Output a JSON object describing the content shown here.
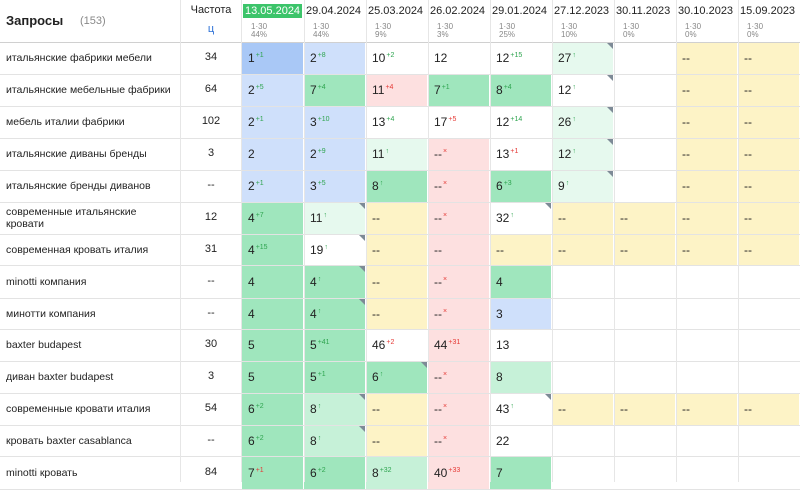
{
  "header": {
    "title": "Запросы",
    "count": "(153)",
    "freq_label": "Частота",
    "freq_sort": "ц"
  },
  "dates": [
    {
      "date": "13.05.2024",
      "s1": "1·30",
      "s2": "44%",
      "active": true
    },
    {
      "date": "29.04.2024",
      "s1": "1·30",
      "s2": "44%"
    },
    {
      "date": "25.03.2024",
      "s1": "1·30",
      "s2": "9%"
    },
    {
      "date": "26.02.2024",
      "s1": "1·30",
      "s2": "3%"
    },
    {
      "date": "29.01.2024",
      "s1": "1·30",
      "s2": "25%"
    },
    {
      "date": "27.12.2023",
      "s1": "1·30",
      "s2": "10%"
    },
    {
      "date": "30.11.2023",
      "s1": "1·30",
      "s2": "0%"
    },
    {
      "date": "30.10.2023",
      "s1": "1·30",
      "s2": "0%"
    },
    {
      "date": "15.09.2023",
      "s1": "1·30",
      "s2": "0%"
    }
  ],
  "colors": {
    "blue": "#cfe0fb",
    "blue_dark": "#a9c8f6",
    "green": "#9fe6bd",
    "green_light": "#c6f1d8",
    "green_pale": "#e6f9ee",
    "yellow": "#fdf3c6",
    "red": "#fde0e0",
    "white": "#ffffff"
  },
  "rows": [
    {
      "query": "итальянские фабрики мебели",
      "freq": "34",
      "cells": [
        {
          "v": "1",
          "ch": "+1",
          "d": "up",
          "bg": "blue_dark"
        },
        {
          "v": "2",
          "ch": "+8",
          "d": "up",
          "bg": "blue"
        },
        {
          "v": "10",
          "ch": "+2",
          "d": "up",
          "bg": "white"
        },
        {
          "v": "12",
          "bg": "white"
        },
        {
          "v": "12",
          "ch": "+15",
          "d": "up",
          "bg": "white"
        },
        {
          "v": "27",
          "ch": "↑",
          "d": "up",
          "bg": "green_pale",
          "corner": true
        },
        {
          "v": "",
          "bg": "white"
        },
        {
          "v": "--",
          "bg": "yellow"
        },
        {
          "v": "--",
          "bg": "yellow"
        }
      ]
    },
    {
      "query": "итальянские мебельные фабрики",
      "freq": "64",
      "cells": [
        {
          "v": "2",
          "ch": "+5",
          "d": "up",
          "bg": "blue"
        },
        {
          "v": "7",
          "ch": "+4",
          "d": "up",
          "bg": "green"
        },
        {
          "v": "11",
          "ch": "+4",
          "d": "dn",
          "bg": "red"
        },
        {
          "v": "7",
          "ch": "+1",
          "d": "up",
          "bg": "green"
        },
        {
          "v": "8",
          "ch": "+4",
          "d": "up",
          "bg": "green"
        },
        {
          "v": "12",
          "ch": "↑",
          "d": "up",
          "bg": "white",
          "corner": true
        },
        {
          "v": "",
          "bg": "white"
        },
        {
          "v": "--",
          "bg": "yellow"
        },
        {
          "v": "--",
          "bg": "yellow"
        }
      ]
    },
    {
      "query": "мебель италии фабрики",
      "freq": "102",
      "cells": [
        {
          "v": "2",
          "ch": "+1",
          "d": "up",
          "bg": "blue"
        },
        {
          "v": "3",
          "ch": "+10",
          "d": "up",
          "bg": "blue"
        },
        {
          "v": "13",
          "ch": "+4",
          "d": "up",
          "bg": "white"
        },
        {
          "v": "17",
          "ch": "+5",
          "d": "dn",
          "bg": "white"
        },
        {
          "v": "12",
          "ch": "+14",
          "d": "up",
          "bg": "white"
        },
        {
          "v": "26",
          "ch": "↑",
          "d": "up",
          "bg": "green_pale",
          "corner": true
        },
        {
          "v": "",
          "bg": "white"
        },
        {
          "v": "--",
          "bg": "yellow"
        },
        {
          "v": "--",
          "bg": "yellow"
        }
      ]
    },
    {
      "query": "итальянские диваны бренды",
      "freq": "3",
      "cells": [
        {
          "v": "2",
          "bg": "blue"
        },
        {
          "v": "2",
          "ch": "+9",
          "d": "up",
          "bg": "blue"
        },
        {
          "v": "11",
          "ch": "↑",
          "d": "up",
          "bg": "green_pale"
        },
        {
          "v": "--",
          "ch": "×",
          "d": "dn",
          "bg": "red"
        },
        {
          "v": "13",
          "ch": "+1",
          "d": "dn",
          "bg": "white"
        },
        {
          "v": "12",
          "ch": "↑",
          "d": "up",
          "bg": "green_pale",
          "corner": true
        },
        {
          "v": "",
          "bg": "white"
        },
        {
          "v": "--",
          "bg": "yellow"
        },
        {
          "v": "--",
          "bg": "yellow"
        }
      ]
    },
    {
      "query": "итальянские бренды диванов",
      "freq": "--",
      "cells": [
        {
          "v": "2",
          "ch": "+1",
          "d": "up",
          "bg": "blue"
        },
        {
          "v": "3",
          "ch": "+5",
          "d": "up",
          "bg": "blue"
        },
        {
          "v": "8",
          "ch": "↑",
          "d": "up",
          "bg": "green"
        },
        {
          "v": "--",
          "ch": "×",
          "d": "dn",
          "bg": "red"
        },
        {
          "v": "6",
          "ch": "+3",
          "d": "up",
          "bg": "green"
        },
        {
          "v": "9",
          "ch": "↑",
          "d": "up",
          "bg": "green_pale",
          "corner": true
        },
        {
          "v": "",
          "bg": "white"
        },
        {
          "v": "--",
          "bg": "yellow"
        },
        {
          "v": "--",
          "bg": "yellow"
        }
      ]
    },
    {
      "query": "современные итальянские кровати",
      "freq": "12",
      "cells": [
        {
          "v": "4",
          "ch": "+7",
          "d": "up",
          "bg": "green"
        },
        {
          "v": "11",
          "ch": "↑",
          "d": "up",
          "bg": "green_pale",
          "corner": true
        },
        {
          "v": "--",
          "bg": "yellow"
        },
        {
          "v": "--",
          "ch": "×",
          "d": "dn",
          "bg": "red"
        },
        {
          "v": "32",
          "ch": "↑",
          "d": "up",
          "bg": "white",
          "corner": true
        },
        {
          "v": "--",
          "bg": "yellow"
        },
        {
          "v": "--",
          "bg": "yellow"
        },
        {
          "v": "--",
          "bg": "yellow"
        },
        {
          "v": "--",
          "bg": "yellow"
        }
      ]
    },
    {
      "query": "современная кровать италия",
      "freq": "31",
      "cells": [
        {
          "v": "4",
          "ch": "+15",
          "d": "up",
          "bg": "green"
        },
        {
          "v": "19",
          "ch": "↑",
          "d": "up",
          "bg": "white",
          "corner": true
        },
        {
          "v": "--",
          "bg": "yellow"
        },
        {
          "v": "--",
          "bg": "red"
        },
        {
          "v": "--",
          "bg": "yellow"
        },
        {
          "v": "--",
          "bg": "yellow"
        },
        {
          "v": "--",
          "bg": "yellow"
        },
        {
          "v": "--",
          "bg": "yellow"
        },
        {
          "v": "--",
          "bg": "yellow"
        }
      ]
    },
    {
      "query": "minotti компания",
      "freq": "--",
      "cells": [
        {
          "v": "4",
          "bg": "green"
        },
        {
          "v": "4",
          "ch": "↑",
          "d": "up",
          "bg": "green",
          "corner": true
        },
        {
          "v": "--",
          "bg": "yellow"
        },
        {
          "v": "--",
          "ch": "×",
          "d": "dn",
          "bg": "red"
        },
        {
          "v": "4",
          "bg": "green"
        },
        {
          "v": "",
          "bg": "white"
        },
        {
          "v": "",
          "bg": "white"
        },
        {
          "v": "",
          "bg": "white"
        },
        {
          "v": "",
          "bg": "white"
        }
      ]
    },
    {
      "query": "минотти компания",
      "freq": "--",
      "cells": [
        {
          "v": "4",
          "bg": "green"
        },
        {
          "v": "4",
          "ch": "↑",
          "d": "up",
          "bg": "green",
          "corner": true
        },
        {
          "v": "--",
          "bg": "yellow"
        },
        {
          "v": "--",
          "ch": "×",
          "d": "dn",
          "bg": "red"
        },
        {
          "v": "3",
          "bg": "blue"
        },
        {
          "v": "",
          "bg": "white"
        },
        {
          "v": "",
          "bg": "white"
        },
        {
          "v": "",
          "bg": "white"
        },
        {
          "v": "",
          "bg": "white"
        }
      ]
    },
    {
      "query": "baxter budapest",
      "freq": "30",
      "cells": [
        {
          "v": "5",
          "bg": "green"
        },
        {
          "v": "5",
          "ch": "+41",
          "d": "up",
          "bg": "green"
        },
        {
          "v": "46",
          "ch": "+2",
          "d": "dn",
          "bg": "white"
        },
        {
          "v": "44",
          "ch": "+31",
          "d": "dn",
          "bg": "red"
        },
        {
          "v": "13",
          "bg": "white"
        },
        {
          "v": "",
          "bg": "white"
        },
        {
          "v": "",
          "bg": "white"
        },
        {
          "v": "",
          "bg": "white"
        },
        {
          "v": "",
          "bg": "white"
        }
      ]
    },
    {
      "query": "диван baxter budapest",
      "freq": "3",
      "cells": [
        {
          "v": "5",
          "bg": "green"
        },
        {
          "v": "5",
          "ch": "+1",
          "d": "up",
          "bg": "green"
        },
        {
          "v": "6",
          "ch": "↑",
          "d": "up",
          "bg": "green",
          "corner": true
        },
        {
          "v": "--",
          "ch": "×",
          "d": "dn",
          "bg": "red"
        },
        {
          "v": "8",
          "bg": "green_light"
        },
        {
          "v": "",
          "bg": "white"
        },
        {
          "v": "",
          "bg": "white"
        },
        {
          "v": "",
          "bg": "white"
        },
        {
          "v": "",
          "bg": "white"
        }
      ]
    },
    {
      "query": "современные кровати италия",
      "freq": "54",
      "cells": [
        {
          "v": "6",
          "ch": "+2",
          "d": "up",
          "bg": "green"
        },
        {
          "v": "8",
          "ch": "↑",
          "d": "up",
          "bg": "green_light",
          "corner": true
        },
        {
          "v": "--",
          "bg": "yellow"
        },
        {
          "v": "--",
          "ch": "×",
          "d": "dn",
          "bg": "red"
        },
        {
          "v": "43",
          "ch": "↑",
          "d": "up",
          "bg": "white",
          "corner": true
        },
        {
          "v": "--",
          "bg": "yellow"
        },
        {
          "v": "--",
          "bg": "yellow"
        },
        {
          "v": "--",
          "bg": "yellow"
        },
        {
          "v": "--",
          "bg": "yellow"
        }
      ]
    },
    {
      "query": "кровать baxter casablanca",
      "freq": "--",
      "cells": [
        {
          "v": "6",
          "ch": "+2",
          "d": "up",
          "bg": "green"
        },
        {
          "v": "8",
          "ch": "↑",
          "d": "up",
          "bg": "green_light",
          "corner": true
        },
        {
          "v": "--",
          "bg": "yellow"
        },
        {
          "v": "--",
          "ch": "×",
          "d": "dn",
          "bg": "red"
        },
        {
          "v": "22",
          "bg": "white"
        },
        {
          "v": "",
          "bg": "white"
        },
        {
          "v": "",
          "bg": "white"
        },
        {
          "v": "",
          "bg": "white"
        },
        {
          "v": "",
          "bg": "white"
        }
      ]
    },
    {
      "query": "minotti кровать",
      "freq": "84",
      "cells": [
        {
          "v": "7",
          "ch": "+1",
          "d": "dn",
          "bg": "green"
        },
        {
          "v": "6",
          "ch": "+2",
          "d": "up",
          "bg": "green"
        },
        {
          "v": "8",
          "ch": "+32",
          "d": "up",
          "bg": "green_light"
        },
        {
          "v": "40",
          "ch": "+33",
          "d": "dn",
          "bg": "red"
        },
        {
          "v": "7",
          "bg": "green"
        },
        {
          "v": "",
          "bg": "white"
        },
        {
          "v": "",
          "bg": "white"
        },
        {
          "v": "",
          "bg": "white"
        },
        {
          "v": "",
          "bg": "white"
        }
      ]
    }
  ]
}
